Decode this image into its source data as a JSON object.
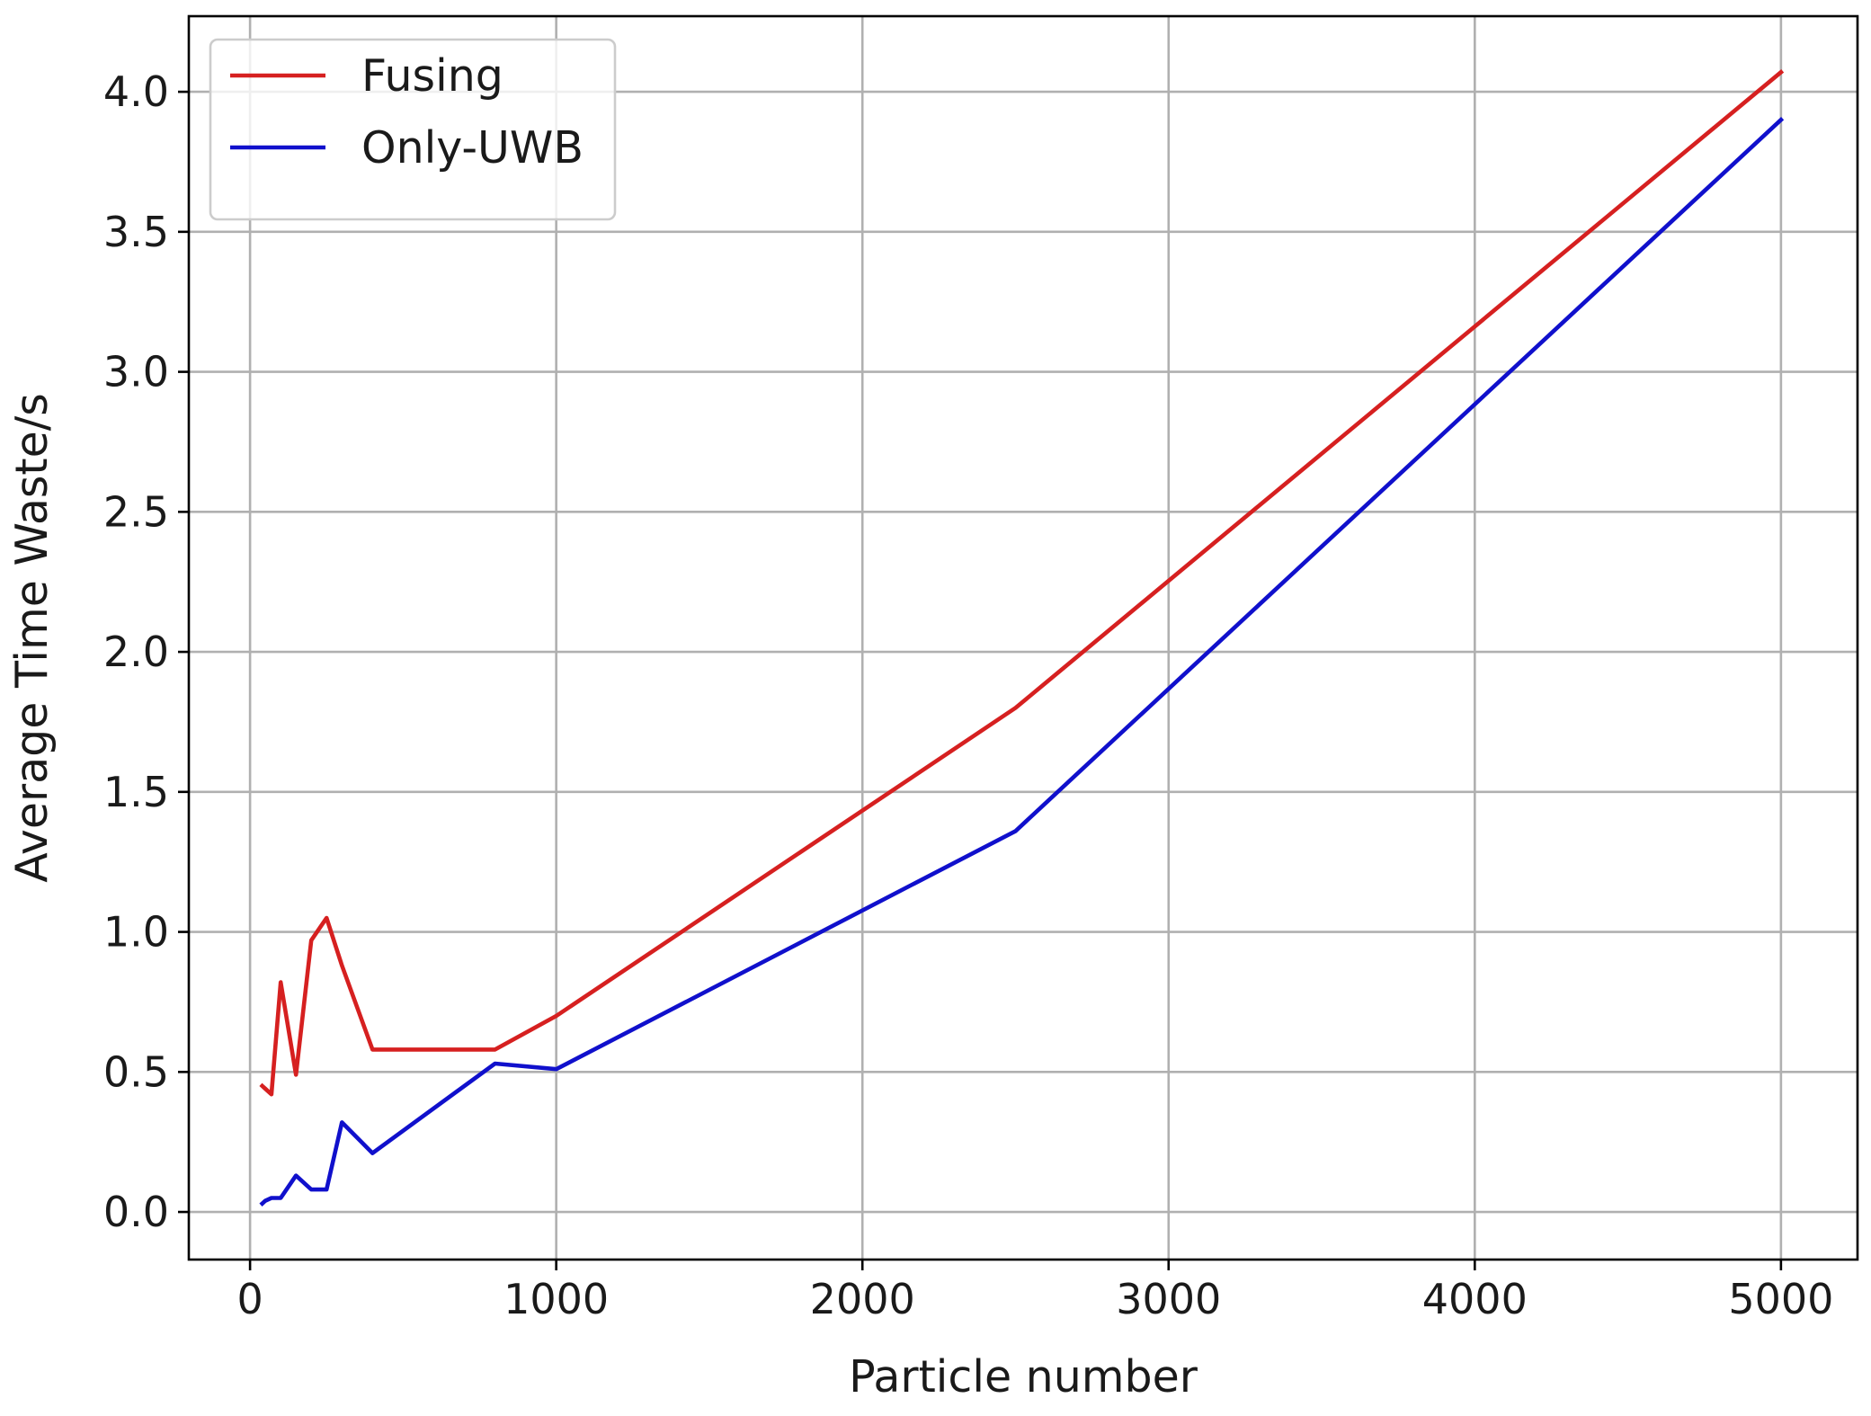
{
  "chart_data": {
    "type": "line",
    "title": "",
    "xlabel": "Particle number",
    "ylabel": "Average Time Waste/s",
    "xlim": [
      -200,
      5250
    ],
    "ylim": [
      -0.17,
      4.27
    ],
    "xticks": [
      0,
      1000,
      2000,
      3000,
      4000,
      5000
    ],
    "xtick_labels": [
      "0",
      "1000",
      "2000",
      "3000",
      "4000",
      "5000"
    ],
    "yticks": [
      0.0,
      0.5,
      1.0,
      1.5,
      2.0,
      2.5,
      3.0,
      3.5,
      4.0
    ],
    "ytick_labels": [
      "0.0",
      "0.5",
      "1.0",
      "1.5",
      "2.0",
      "2.5",
      "3.0",
      "3.5",
      "4.0"
    ],
    "grid": true,
    "legend_position": "top-left",
    "series": [
      {
        "name": "Fusing",
        "color": "#d62020",
        "x": [
          40,
          50,
          70,
          100,
          150,
          200,
          250,
          300,
          400,
          800,
          1000,
          2500,
          5000
        ],
        "y": [
          0.45,
          0.44,
          0.42,
          0.82,
          0.49,
          0.97,
          1.05,
          0.88,
          0.58,
          0.58,
          0.7,
          1.8,
          4.07
        ]
      },
      {
        "name": "Only-UWB",
        "color": "#1010cc",
        "x": [
          40,
          50,
          70,
          100,
          150,
          200,
          250,
          300,
          400,
          800,
          1000,
          2500,
          5000
        ],
        "y": [
          0.03,
          0.04,
          0.05,
          0.05,
          0.13,
          0.08,
          0.08,
          0.32,
          0.21,
          0.53,
          0.51,
          1.36,
          3.9
        ]
      }
    ]
  }
}
